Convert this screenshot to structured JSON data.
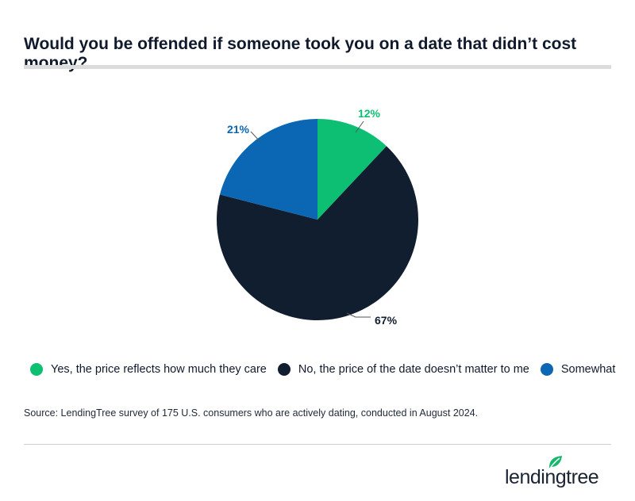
{
  "title": "Would you be offended if someone took you on a date that didn’t cost money?",
  "chart_data": {
    "type": "pie",
    "slices": [
      {
        "label": "Yes, the price reflects how much they care",
        "value": 12,
        "display": "12%",
        "color": "#0dbf72"
      },
      {
        "label": "No, the price of the date doesn’t matter to me",
        "value": 67,
        "display": "67%",
        "color": "#111e30"
      },
      {
        "label": "Somewhat",
        "value": 21,
        "display": "21%",
        "color": "#0b67b3"
      }
    ],
    "legend_position": "bottom"
  },
  "legend": [
    {
      "label": "Yes, the price reflects how much they care",
      "color": "#0dbf72"
    },
    {
      "label": "No, the price of the date doesn’t matter to me",
      "color": "#111e30"
    },
    {
      "label": "Somewhat",
      "color": "#0b67b3"
    }
  ],
  "source": "Source: LendingTree survey of 175 U.S. consumers who are actively dating, conducted in August 2024.",
  "logo": {
    "text": "lendingtree",
    "icon": "leaf-icon"
  }
}
